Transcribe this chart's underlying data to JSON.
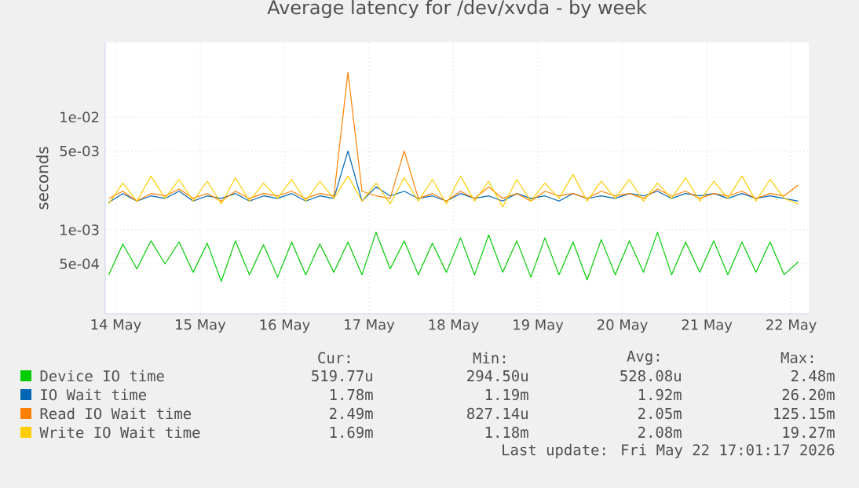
{
  "chart_data": {
    "type": "line",
    "title": "Average latency for /dev/xvda - by week",
    "ylabel": "seconds",
    "log": "y",
    "grid": true,
    "legend": "bottom",
    "xlim": [
      "2026-05-14T09:00",
      "2026-05-22T17:00"
    ],
    "ylim": [
      0.00018,
      0.046
    ],
    "xticks": [
      {
        "value": "2026-05-14T12:00",
        "label": "14 May"
      },
      {
        "value": "2026-05-15T12:00",
        "label": "15 May"
      },
      {
        "value": "2026-05-16T12:00",
        "label": "16 May"
      },
      {
        "value": "2026-05-17T12:00",
        "label": "17 May"
      },
      {
        "value": "2026-05-18T12:00",
        "label": "18 May"
      },
      {
        "value": "2026-05-19T12:00",
        "label": "19 May"
      },
      {
        "value": "2026-05-20T12:00",
        "label": "20 May"
      },
      {
        "value": "2026-05-21T12:00",
        "label": "21 May"
      },
      {
        "value": "2026-05-22T12:00",
        "label": "22 May"
      }
    ],
    "yticks": [
      {
        "value": 0.0005,
        "label": "5e-04"
      },
      {
        "value": 0.001,
        "label": "1e-03"
      },
      {
        "value": 0.005,
        "label": "5e-03"
      },
      {
        "value": 0.01,
        "label": "1e-02"
      }
    ],
    "x": [
      "2026-05-14T10:00",
      "2026-05-14T14:00",
      "2026-05-14T18:00",
      "2026-05-14T22:00",
      "2026-05-15T02:00",
      "2026-05-15T06:00",
      "2026-05-15T10:00",
      "2026-05-15T14:00",
      "2026-05-15T18:00",
      "2026-05-15T22:00",
      "2026-05-16T02:00",
      "2026-05-16T06:00",
      "2026-05-16T10:00",
      "2026-05-16T14:00",
      "2026-05-16T18:00",
      "2026-05-16T22:00",
      "2026-05-17T02:00",
      "2026-05-17T06:00",
      "2026-05-17T10:00",
      "2026-05-17T14:00",
      "2026-05-17T18:00",
      "2026-05-17T22:00",
      "2026-05-18T02:00",
      "2026-05-18T06:00",
      "2026-05-18T10:00",
      "2026-05-18T14:00",
      "2026-05-18T18:00",
      "2026-05-18T22:00",
      "2026-05-19T02:00",
      "2026-05-19T06:00",
      "2026-05-19T10:00",
      "2026-05-19T14:00",
      "2026-05-19T18:00",
      "2026-05-19T22:00",
      "2026-05-20T02:00",
      "2026-05-20T06:00",
      "2026-05-20T10:00",
      "2026-05-20T14:00",
      "2026-05-20T18:00",
      "2026-05-20T22:00",
      "2026-05-21T02:00",
      "2026-05-21T06:00",
      "2026-05-21T10:00",
      "2026-05-21T14:00",
      "2026-05-21T18:00",
      "2026-05-21T22:00",
      "2026-05-22T02:00",
      "2026-05-22T06:00",
      "2026-05-22T10:00",
      "2026-05-22T14:00"
    ],
    "series": [
      {
        "name": "Device IO time",
        "color": "#00cc00",
        "values": [
          0.0004,
          0.00075,
          0.00045,
          0.0008,
          0.0005,
          0.00078,
          0.00042,
          0.00076,
          0.00035,
          0.0008,
          0.0004,
          0.00074,
          0.00038,
          0.00078,
          0.0004,
          0.00075,
          0.00042,
          0.00078,
          0.0004,
          0.00095,
          0.00045,
          0.0008,
          0.0004,
          0.00076,
          0.00042,
          0.00085,
          0.0004,
          0.0009,
          0.00042,
          0.0008,
          0.00038,
          0.00085,
          0.0004,
          0.00078,
          0.00036,
          0.00082,
          0.0004,
          0.0008,
          0.00042,
          0.00095,
          0.0004,
          0.00078,
          0.00042,
          0.0008,
          0.0004,
          0.00078,
          0.00042,
          0.00078,
          0.0004,
          0.00052
        ]
      },
      {
        "name": "IO Wait time",
        "color": "#0066b3",
        "values": [
          0.00175,
          0.0021,
          0.0018,
          0.002,
          0.0019,
          0.0022,
          0.0018,
          0.002,
          0.0019,
          0.0021,
          0.0018,
          0.002,
          0.0019,
          0.0021,
          0.0018,
          0.002,
          0.0019,
          0.005,
          0.0018,
          0.0024,
          0.002,
          0.0022,
          0.0019,
          0.002,
          0.0018,
          0.0021,
          0.0019,
          0.002,
          0.0018,
          0.0021,
          0.0019,
          0.002,
          0.0018,
          0.0021,
          0.0019,
          0.002,
          0.0019,
          0.0021,
          0.002,
          0.0022,
          0.0019,
          0.0021,
          0.002,
          0.0021,
          0.0019,
          0.0021,
          0.0019,
          0.002,
          0.0019,
          0.0018
        ]
      },
      {
        "name": "Read IO Wait time",
        "color": "#ff8000",
        "values": [
          0.0019,
          0.0022,
          0.0018,
          0.0021,
          0.002,
          0.0023,
          0.0019,
          0.0021,
          0.0018,
          0.0022,
          0.0019,
          0.0021,
          0.002,
          0.0022,
          0.0019,
          0.0021,
          0.002,
          0.025,
          0.0022,
          0.002,
          0.0019,
          0.005,
          0.0019,
          0.0021,
          0.0018,
          0.0022,
          0.0019,
          0.0024,
          0.0019,
          0.0021,
          0.0018,
          0.0022,
          0.002,
          0.0021,
          0.0019,
          0.0022,
          0.002,
          0.0021,
          0.0019,
          0.0023,
          0.002,
          0.0022,
          0.0019,
          0.0021,
          0.002,
          0.0022,
          0.0019,
          0.0021,
          0.002,
          0.0025
        ]
      },
      {
        "name": "Write IO Wait time",
        "color": "#ffcc00",
        "values": [
          0.0017,
          0.0026,
          0.0018,
          0.003,
          0.0019,
          0.0028,
          0.0018,
          0.0027,
          0.0017,
          0.0029,
          0.0018,
          0.0026,
          0.0019,
          0.0028,
          0.0018,
          0.0027,
          0.0019,
          0.003,
          0.0018,
          0.0026,
          0.0017,
          0.0029,
          0.0018,
          0.0028,
          0.0017,
          0.003,
          0.0018,
          0.0027,
          0.0016,
          0.0028,
          0.0018,
          0.0026,
          0.0019,
          0.0031,
          0.0018,
          0.0027,
          0.0019,
          0.0028,
          0.0018,
          0.0026,
          0.0019,
          0.0029,
          0.0018,
          0.0027,
          0.0019,
          0.003,
          0.0018,
          0.0028,
          0.0019,
          0.0017
        ]
      }
    ],
    "annotations": [
      "Cur:",
      "Min:",
      "Avg:",
      "Max:",
      "519.77u",
      "294.50u",
      "528.08u",
      "2.48m",
      "1.78m",
      "1.19m",
      "1.92m",
      "26.20m",
      "2.49m",
      "827.14u",
      "2.05m",
      "125.15m",
      "1.69m",
      "1.18m",
      "2.08m",
      "19.27m",
      "Last update: Fri May 22 17:01:17 2026"
    ]
  }
}
